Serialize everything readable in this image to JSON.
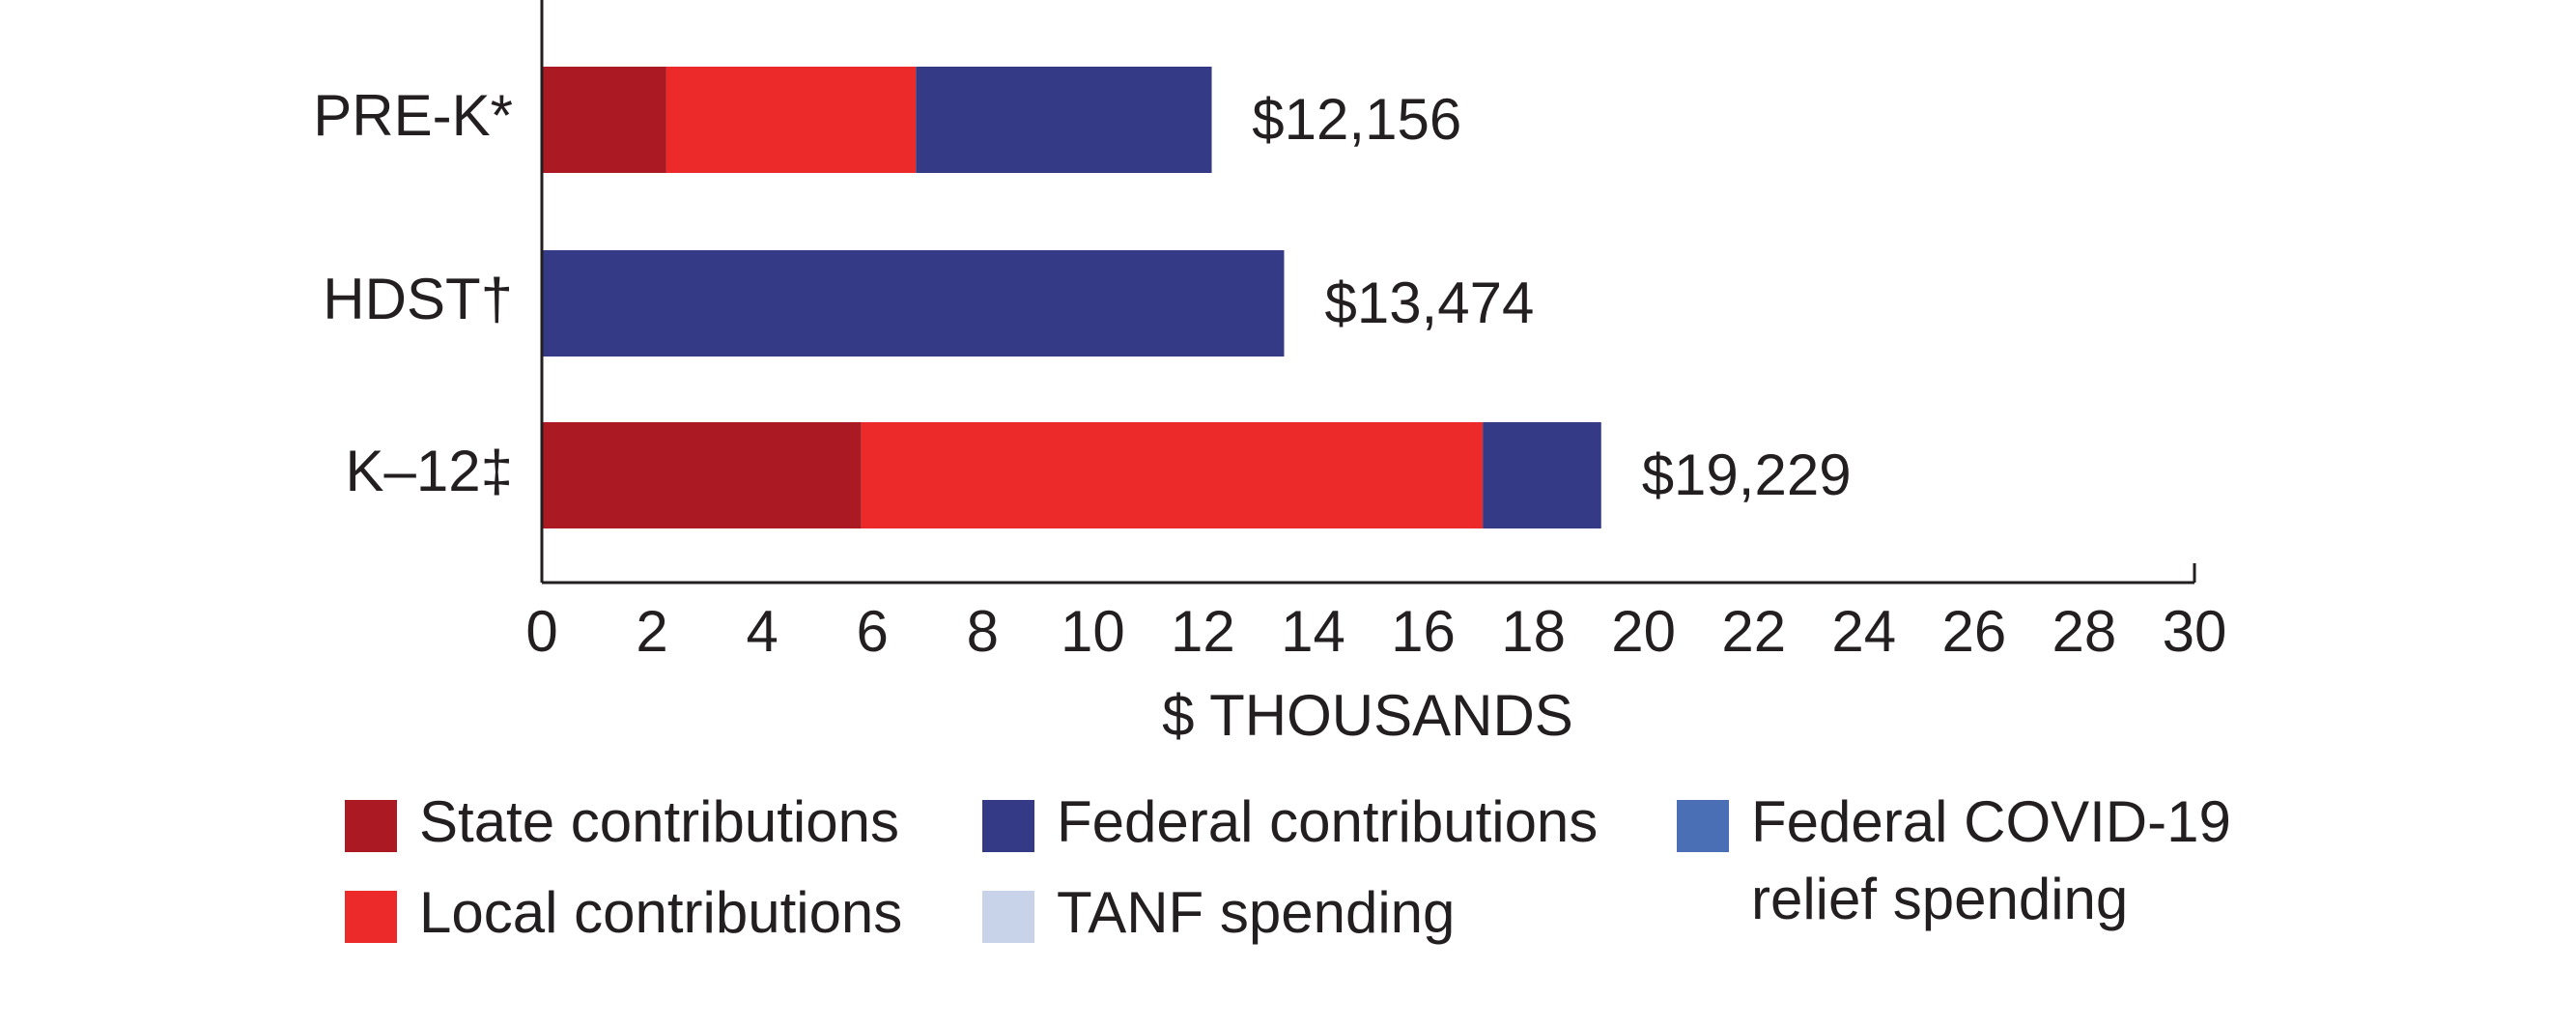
{
  "chart_data": {
    "type": "stacked_bar_horizontal",
    "categories": [
      "PRE-K*",
      "HDST†",
      "K–12‡"
    ],
    "series": [
      {
        "name": "State contributions",
        "color": "#ab1a22",
        "values": [
          2.26,
          0,
          5.8
        ]
      },
      {
        "name": "Local contributions",
        "color": "#ec2a2a",
        "values": [
          4.53,
          0,
          11.28
        ]
      },
      {
        "name": "Federal contributions",
        "color": "#343a85",
        "values": [
          5.37,
          13.474,
          2.15
        ]
      },
      {
        "name": "TANF spending",
        "color": "#c8d3ea",
        "values": [
          0,
          0,
          0
        ]
      },
      {
        "name": "Federal COVID-19 relief spending",
        "color": "#4a6fb5",
        "values": [
          0,
          0,
          0
        ]
      }
    ],
    "totals": {
      "values": [
        12.156,
        13.474,
        19.229
      ],
      "value_labels": [
        "$12,156",
        "$13,474",
        "$19,229"
      ]
    },
    "x_label": "$ THOUSANDS",
    "xlim": [
      0,
      30
    ],
    "xticks": [
      0,
      2,
      4,
      6,
      8,
      10,
      12,
      14,
      16,
      18,
      20,
      22,
      24,
      26,
      28,
      30
    ]
  }
}
